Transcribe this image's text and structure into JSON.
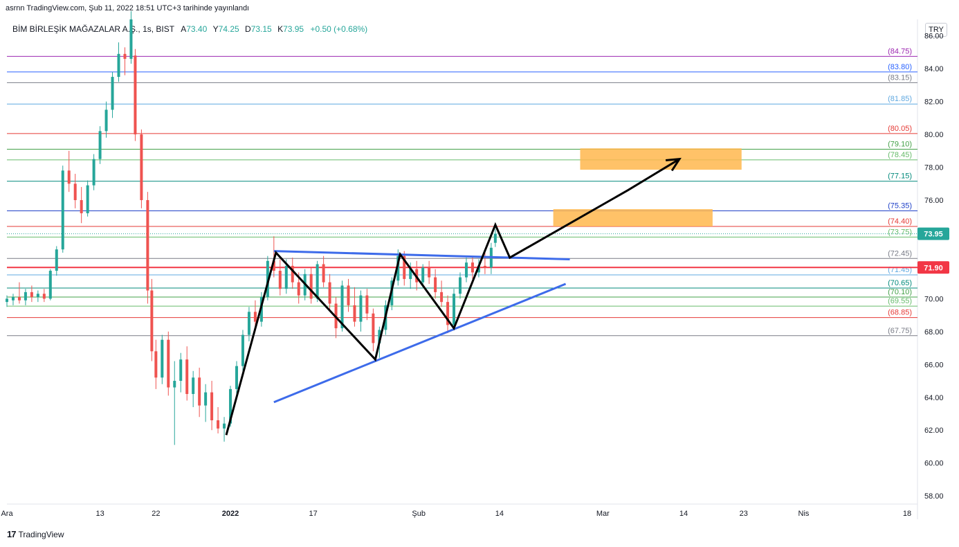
{
  "header": {
    "published": "asrnn TradingView.com, Şub 11, 2022 18:51 UTC+3 tarihinde yayınlandı",
    "symbol": "BİM BİRLEŞİK MAĞAZALAR A.Ş.",
    "interval": "1s",
    "exchange": "BIST",
    "o_label": "A",
    "o_value": "73.40",
    "h_label": "Y",
    "h_value": "74.25",
    "l_label": "D",
    "l_value": "73.15",
    "c_label": "K",
    "c_value": "73.95",
    "change": "+0.50 (+0.68%)",
    "currency": "TRY"
  },
  "footer": {
    "brand": "TradingView"
  },
  "chart_data": {
    "type": "candlestick",
    "title": "BİM BİRLEŞİK MAĞAZALAR A.Ş., 1s, BIST",
    "ylim": [
      57.5,
      87.0
    ],
    "y_ticks": [
      "58.00",
      "60.00",
      "62.00",
      "64.00",
      "66.00",
      "68.00",
      "70.00",
      "72.00",
      "74.00",
      "76.00",
      "78.00",
      "80.00",
      "82.00",
      "84.00",
      "86.00"
    ],
    "x_ticks": [
      {
        "label": "Ara",
        "bar": 0
      },
      {
        "label": "13",
        "bar": 45
      },
      {
        "label": "22",
        "bar": 72
      },
      {
        "label": "2022",
        "bar": 108
      },
      {
        "label": "17",
        "bar": 148
      },
      {
        "label": "Şub",
        "bar": 199
      },
      {
        "label": "14",
        "bar": 238
      },
      {
        "label": "Mar",
        "bar": 288
      },
      {
        "label": "14",
        "bar": 327
      },
      {
        "label": "23",
        "bar": 356
      },
      {
        "label": "Nis",
        "bar": 385
      },
      {
        "label": "18",
        "bar": 435
      }
    ],
    "bars_visible": 440,
    "last_price": "73.95",
    "last_price_color": "#26a69a",
    "marker_price": "71.90",
    "marker_color": "#f23645",
    "levels": [
      {
        "value": 84.75,
        "label": "(84.75)",
        "color": "#9c27b0"
      },
      {
        "value": 83.8,
        "label": "(83.80)",
        "color": "#2962ff"
      },
      {
        "value": 83.15,
        "label": "(83.15)",
        "color": "#787b86"
      },
      {
        "value": 81.85,
        "label": "(81.85)",
        "color": "#5fa8e0"
      },
      {
        "value": 80.05,
        "label": "(80.05)",
        "color": "#e53935"
      },
      {
        "value": 79.1,
        "label": "(79.10)",
        "color": "#43a047"
      },
      {
        "value": 78.45,
        "label": "(78.45)",
        "color": "#66bb6a"
      },
      {
        "value": 77.15,
        "label": "(77.15)",
        "color": "#00897b"
      },
      {
        "value": 75.35,
        "label": "(75.35)",
        "color": "#1e40c8"
      },
      {
        "value": 74.4,
        "label": "(74.40)",
        "color": "#e53935"
      },
      {
        "value": 73.75,
        "label": "(73.75)",
        "color": "#66bb6a"
      },
      {
        "value": 72.45,
        "label": "(72.45)",
        "color": "#787b86"
      },
      {
        "value": 71.45,
        "label": "(71.45)",
        "color": "#5fa8e0"
      },
      {
        "value": 70.65,
        "label": "(70.65)",
        "color": "#00897b"
      },
      {
        "value": 70.1,
        "label": "(70.10)",
        "color": "#43a047"
      },
      {
        "value": 69.55,
        "label": "(69.55)",
        "color": "#66bb6a"
      },
      {
        "value": 68.85,
        "label": "(68.85)",
        "color": "#e53935"
      },
      {
        "value": 67.75,
        "label": "(67.75)",
        "color": "#787b86"
      }
    ],
    "trend_lines": [
      {
        "from": [
          129,
          72.9
        ],
        "to": [
          272,
          72.4
        ],
        "color": "#3d6bea"
      },
      {
        "from": [
          129,
          63.7
        ],
        "to": [
          270,
          70.9
        ],
        "color": "#3d6bea"
      }
    ],
    "zigzag": [
      [
        106,
        61.7
      ],
      [
        130,
        72.8
      ],
      [
        178,
        66.3
      ],
      [
        190,
        72.7
      ],
      [
        216,
        68.2
      ],
      [
        236,
        74.5
      ],
      [
        243,
        72.5
      ],
      [
        300,
        76.6
      ],
      [
        325,
        78.5
      ]
    ],
    "target_zones": [
      {
        "x": [
          264,
          341
        ],
        "y": [
          74.4,
          75.45
        ],
        "color": "#ffb74d"
      },
      {
        "x": [
          277,
          355
        ],
        "y": [
          77.85,
          79.15
        ],
        "color": "#ffb74d"
      }
    ],
    "series": [
      {
        "x": 0,
        "values": [
          69.8,
          70.2,
          69.5,
          70.0
        ]
      },
      {
        "x": 3,
        "values": [
          69.9,
          70.3,
          69.6,
          70.1
        ]
      },
      {
        "x": 6,
        "values": [
          70.1,
          71.0,
          69.7,
          69.9
        ]
      },
      {
        "x": 9,
        "values": [
          69.9,
          70.6,
          69.6,
          70.4
        ]
      },
      {
        "x": 12,
        "values": [
          70.4,
          70.8,
          69.8,
          70.1
        ]
      },
      {
        "x": 15,
        "values": [
          70.1,
          70.5,
          69.8,
          70.3
        ]
      },
      {
        "x": 18,
        "values": [
          70.3,
          70.6,
          69.8,
          70.0
        ]
      },
      {
        "x": 21,
        "values": [
          70.0,
          71.8,
          69.9,
          71.7
        ]
      },
      {
        "x": 24,
        "values": [
          71.7,
          73.2,
          71.4,
          73.0
        ]
      },
      {
        "x": 27,
        "values": [
          73.0,
          78.1,
          72.8,
          77.8
        ]
      },
      {
        "x": 30,
        "values": [
          77.8,
          79.0,
          76.5,
          77.0
        ]
      },
      {
        "x": 33,
        "values": [
          77.0,
          77.6,
          75.5,
          76.0
        ]
      },
      {
        "x": 36,
        "values": [
          76.0,
          76.8,
          74.6,
          75.2
        ]
      },
      {
        "x": 39,
        "values": [
          75.2,
          77.2,
          75.0,
          76.9
        ]
      },
      {
        "x": 42,
        "values": [
          76.9,
          78.8,
          76.6,
          78.5
        ]
      },
      {
        "x": 45,
        "values": [
          78.5,
          80.5,
          78.2,
          80.2
        ]
      },
      {
        "x": 48,
        "values": [
          80.2,
          82.0,
          79.8,
          81.5
        ]
      },
      {
        "x": 51,
        "values": [
          81.5,
          83.8,
          81.0,
          83.5
        ]
      },
      {
        "x": 54,
        "values": [
          83.5,
          85.6,
          83.2,
          84.9
        ]
      },
      {
        "x": 57,
        "values": [
          84.9,
          85.3,
          83.6,
          84.6
        ]
      },
      {
        "x": 60,
        "values": [
          84.6,
          87.5,
          84.3,
          87.0
        ]
      },
      {
        "x": 62,
        "values": [
          84.8,
          85.2,
          79.6,
          80.0
        ]
      },
      {
        "x": 65,
        "values": [
          80.0,
          80.3,
          75.5,
          76.0
        ]
      },
      {
        "x": 68,
        "values": [
          76.0,
          76.5,
          69.7,
          70.5
        ]
      },
      {
        "x": 70,
        "values": [
          70.5,
          71.2,
          66.2,
          66.8
        ]
      },
      {
        "x": 72,
        "values": [
          66.8,
          67.5,
          64.5,
          65.2
        ]
      },
      {
        "x": 75,
        "values": [
          65.2,
          67.8,
          64.8,
          67.5
        ]
      },
      {
        "x": 78,
        "values": [
          67.5,
          68.0,
          64.1,
          64.6
        ]
      },
      {
        "x": 81,
        "values": [
          64.6,
          66.2,
          61.1,
          65.0
        ]
      },
      {
        "x": 84,
        "values": [
          65.0,
          66.7,
          64.3,
          66.3
        ]
      },
      {
        "x": 87,
        "values": [
          66.3,
          67.1,
          63.8,
          64.2
        ]
      },
      {
        "x": 90,
        "values": [
          64.2,
          65.6,
          63.4,
          65.2
        ]
      },
      {
        "x": 93,
        "values": [
          65.2,
          65.8,
          62.8,
          63.5
        ]
      },
      {
        "x": 96,
        "values": [
          63.5,
          64.8,
          62.5,
          64.3
        ]
      },
      {
        "x": 99,
        "values": [
          64.3,
          65.0,
          62.0,
          62.6
        ]
      },
      {
        "x": 102,
        "values": [
          62.6,
          63.4,
          61.8,
          62.1
        ]
      },
      {
        "x": 105,
        "values": [
          62.1,
          62.8,
          61.3,
          62.4
        ]
      },
      {
        "x": 108,
        "values": [
          62.4,
          64.7,
          62.2,
          64.5
        ]
      },
      {
        "x": 111,
        "values": [
          64.5,
          66.2,
          64.0,
          65.9
        ]
      },
      {
        "x": 114,
        "values": [
          65.9,
          68.1,
          65.6,
          67.8
        ]
      },
      {
        "x": 117,
        "values": [
          67.8,
          69.5,
          67.4,
          69.2
        ]
      },
      {
        "x": 120,
        "values": [
          69.2,
          69.9,
          68.0,
          68.6
        ]
      },
      {
        "x": 123,
        "values": [
          68.6,
          70.4,
          68.3,
          70.1
        ]
      },
      {
        "x": 126,
        "values": [
          70.1,
          72.6,
          69.9,
          72.3
        ]
      },
      {
        "x": 129,
        "values": [
          72.3,
          73.8,
          71.3,
          71.7
        ]
      },
      {
        "x": 132,
        "values": [
          71.7,
          72.4,
          70.2,
          70.6
        ]
      },
      {
        "x": 135,
        "values": [
          70.6,
          72.4,
          70.3,
          72.0
        ]
      },
      {
        "x": 138,
        "values": [
          72.0,
          72.5,
          70.6,
          71.0
        ]
      },
      {
        "x": 141,
        "values": [
          71.0,
          71.6,
          69.7,
          70.2
        ]
      },
      {
        "x": 144,
        "values": [
          70.2,
          71.8,
          69.9,
          71.5
        ]
      },
      {
        "x": 147,
        "values": [
          71.5,
          71.9,
          69.7,
          70.0
        ]
      },
      {
        "x": 150,
        "values": [
          70.0,
          72.3,
          69.8,
          72.1
        ]
      },
      {
        "x": 153,
        "values": [
          72.1,
          72.6,
          70.7,
          71.0
        ]
      },
      {
        "x": 156,
        "values": [
          71.0,
          71.5,
          69.3,
          69.7
        ]
      },
      {
        "x": 159,
        "values": [
          69.7,
          70.1,
          67.6,
          68.2
        ]
      },
      {
        "x": 162,
        "values": [
          68.2,
          71.1,
          68.0,
          70.8
        ]
      },
      {
        "x": 165,
        "values": [
          70.8,
          71.2,
          69.2,
          69.6
        ]
      },
      {
        "x": 168,
        "values": [
          69.6,
          70.7,
          68.3,
          68.6
        ]
      },
      {
        "x": 171,
        "values": [
          68.6,
          70.5,
          68.0,
          70.2
        ]
      },
      {
        "x": 174,
        "values": [
          70.2,
          70.6,
          68.7,
          69.1
        ]
      },
      {
        "x": 177,
        "values": [
          69.1,
          69.4,
          66.8,
          67.3
        ]
      },
      {
        "x": 180,
        "values": [
          67.3,
          68.3,
          66.4,
          68.1
        ]
      },
      {
        "x": 183,
        "values": [
          68.1,
          69.9,
          67.8,
          69.6
        ]
      },
      {
        "x": 186,
        "values": [
          69.6,
          71.3,
          69.3,
          71.1
        ]
      },
      {
        "x": 189,
        "values": [
          71.1,
          73.0,
          70.8,
          72.6
        ]
      },
      {
        "x": 192,
        "values": [
          72.6,
          72.9,
          70.8,
          71.2
        ]
      },
      {
        "x": 195,
        "values": [
          71.2,
          72.2,
          70.6,
          71.8
        ]
      },
      {
        "x": 198,
        "values": [
          71.8,
          72.3,
          70.5,
          71.0
        ]
      },
      {
        "x": 201,
        "values": [
          71.0,
          72.1,
          70.7,
          71.9
        ]
      },
      {
        "x": 204,
        "values": [
          71.9,
          72.3,
          70.9,
          71.3
        ]
      },
      {
        "x": 207,
        "values": [
          71.3,
          71.8,
          70.0,
          70.4
        ]
      },
      {
        "x": 210,
        "values": [
          70.4,
          71.1,
          69.5,
          69.8
        ]
      },
      {
        "x": 213,
        "values": [
          69.8,
          70.2,
          67.9,
          68.4
        ]
      },
      {
        "x": 216,
        "values": [
          68.4,
          70.6,
          68.1,
          70.3
        ]
      },
      {
        "x": 219,
        "values": [
          70.3,
          71.6,
          70.0,
          71.3
        ]
      },
      {
        "x": 222,
        "values": [
          71.3,
          72.5,
          71.0,
          72.2
        ]
      },
      {
        "x": 225,
        "values": [
          72.2,
          72.6,
          71.2,
          71.6
        ]
      },
      {
        "x": 228,
        "values": [
          71.6,
          72.4,
          71.3,
          72.0
        ]
      },
      {
        "x": 231,
        "values": [
          72.0,
          72.8,
          71.5,
          71.9
        ]
      },
      {
        "x": 234,
        "values": [
          71.9,
          73.4,
          71.5,
          73.1
        ]
      },
      {
        "x": 236,
        "values": [
          73.4,
          74.25,
          73.15,
          73.95
        ]
      }
    ]
  }
}
